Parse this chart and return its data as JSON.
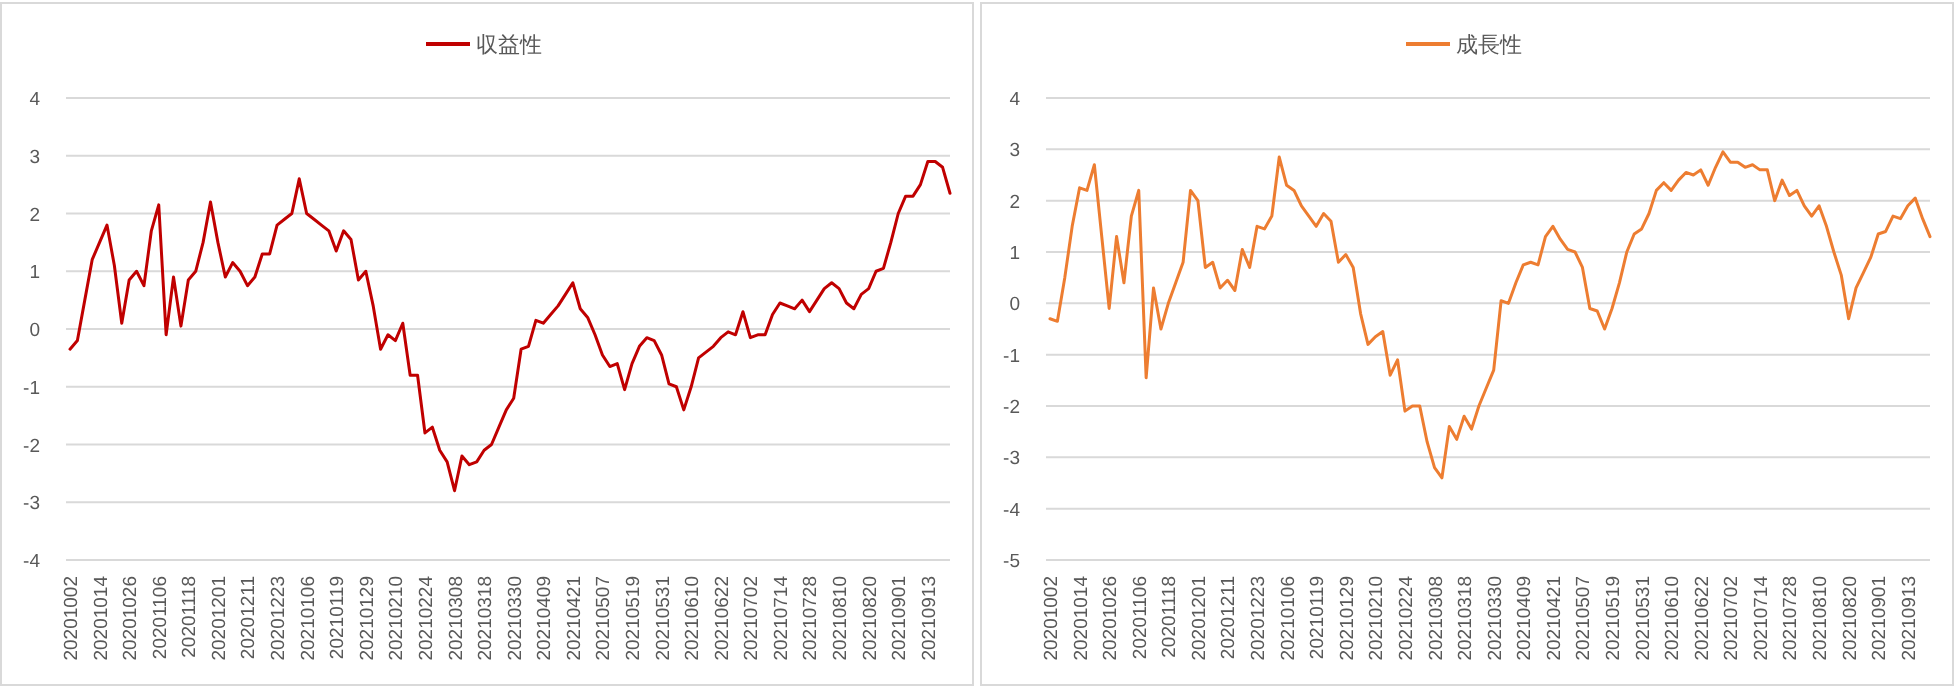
{
  "chart_data": [
    {
      "type": "line",
      "legend": "top",
      "grid": "y",
      "ylim": [
        -4,
        4
      ],
      "yticks": [
        -4,
        -3,
        -2,
        -1,
        0,
        1,
        2,
        3,
        4
      ],
      "categories": [
        "20201002",
        null,
        null,
        null,
        "20201014",
        null,
        null,
        null,
        "20201026",
        null,
        null,
        null,
        "20201106",
        null,
        null,
        null,
        "20201118",
        null,
        null,
        null,
        "20201201",
        null,
        null,
        null,
        "20201211",
        null,
        null,
        null,
        "20201223",
        null,
        null,
        null,
        "20210106",
        null,
        null,
        null,
        "20210119",
        null,
        null,
        null,
        "20210129",
        null,
        null,
        null,
        "20210210",
        null,
        null,
        null,
        "20210224",
        null,
        null,
        null,
        "20210308",
        null,
        null,
        null,
        "20210318",
        null,
        null,
        null,
        "20210330",
        null,
        null,
        null,
        "20210409",
        null,
        null,
        null,
        "20210421",
        null,
        null,
        null,
        "20210507",
        null,
        null,
        null,
        "20210519",
        null,
        null,
        null,
        "20210531",
        null,
        null,
        null,
        "20210610",
        null,
        null,
        null,
        "20210622",
        null,
        null,
        null,
        "20210702",
        null,
        null,
        null,
        "20210714",
        null,
        null,
        null,
        "20210728",
        null,
        null,
        null,
        "20210810",
        null,
        null,
        null,
        "20210820",
        null,
        null,
        null,
        "20210901",
        null,
        null,
        null,
        "20210913",
        null,
        null,
        null
      ],
      "series": [
        {
          "name": "収益性",
          "color": "#c00000",
          "values": [
            -0.35,
            -0.2,
            0.5,
            1.2,
            1.5,
            1.8,
            1.1,
            0.1,
            0.85,
            1.0,
            0.75,
            1.7,
            2.15,
            -0.1,
            0.9,
            0.05,
            0.85,
            1.0,
            1.5,
            2.2,
            1.5,
            0.9,
            1.15,
            1.0,
            0.75,
            0.9,
            1.3,
            1.3,
            1.8,
            1.9,
            2.0,
            2.6,
            2.0,
            1.9,
            1.8,
            1.7,
            1.35,
            1.7,
            1.55,
            0.85,
            1.0,
            0.4,
            -0.35,
            -0.1,
            -0.2,
            0.1,
            -0.8,
            -0.8,
            -1.8,
            -1.7,
            -2.1,
            -2.3,
            -2.8,
            -2.2,
            -2.35,
            -2.3,
            -2.1,
            -2.0,
            -1.7,
            -1.4,
            -1.2,
            -0.35,
            -0.3,
            0.15,
            0.1,
            0.25,
            0.4,
            0.6,
            0.8,
            0.35,
            0.2,
            -0.1,
            -0.45,
            -0.65,
            -0.6,
            -1.05,
            -0.6,
            -0.3,
            -0.15,
            -0.2,
            -0.45,
            -0.95,
            -1.0,
            -1.4,
            -1.0,
            -0.5,
            -0.4,
            -0.3,
            -0.15,
            -0.05,
            -0.1,
            0.3,
            -0.15,
            -0.1,
            -0.1,
            0.25,
            0.45,
            0.4,
            0.35,
            0.5,
            0.3,
            0.5,
            0.7,
            0.8,
            0.7,
            0.45,
            0.35,
            0.6,
            0.7,
            1.0,
            1.05,
            1.5,
            2.0,
            2.3,
            2.3,
            2.5,
            2.9,
            2.9,
            2.8,
            2.35
          ]
        }
      ]
    },
    {
      "type": "line",
      "legend": "top",
      "grid": "y",
      "ylim": [
        -5,
        4
      ],
      "yticks": [
        -5,
        -4,
        -3,
        -2,
        -1,
        0,
        1,
        2,
        3,
        4
      ],
      "categories": [
        "20201002",
        null,
        null,
        null,
        "20201014",
        null,
        null,
        null,
        "20201026",
        null,
        null,
        null,
        "20201106",
        null,
        null,
        null,
        "20201118",
        null,
        null,
        null,
        "20201201",
        null,
        null,
        null,
        "20201211",
        null,
        null,
        null,
        "20201223",
        null,
        null,
        null,
        "20210106",
        null,
        null,
        null,
        "20210119",
        null,
        null,
        null,
        "20210129",
        null,
        null,
        null,
        "20210210",
        null,
        null,
        null,
        "20210224",
        null,
        null,
        null,
        "20210308",
        null,
        null,
        null,
        "20210318",
        null,
        null,
        null,
        "20210330",
        null,
        null,
        null,
        "20210409",
        null,
        null,
        null,
        "20210421",
        null,
        null,
        null,
        "20210507",
        null,
        null,
        null,
        "20210519",
        null,
        null,
        null,
        "20210531",
        null,
        null,
        null,
        "20210610",
        null,
        null,
        null,
        "20210622",
        null,
        null,
        null,
        "20210702",
        null,
        null,
        null,
        "20210714",
        null,
        null,
        null,
        "20210728",
        null,
        null,
        null,
        "20210810",
        null,
        null,
        null,
        "20210820",
        null,
        null,
        null,
        "20210901",
        null,
        null,
        null,
        "20210913",
        null,
        null,
        null
      ],
      "series": [
        {
          "name": "成長性",
          "color": "#ed7d31",
          "values": [
            -0.3,
            -0.35,
            0.5,
            1.5,
            2.25,
            2.2,
            2.7,
            1.3,
            -0.1,
            1.3,
            0.4,
            1.7,
            2.2,
            -1.45,
            0.3,
            -0.5,
            0.0,
            0.4,
            0.8,
            2.2,
            2.0,
            0.7,
            0.8,
            0.3,
            0.45,
            0.25,
            1.05,
            0.7,
            1.5,
            1.45,
            1.7,
            2.85,
            2.3,
            2.2,
            1.9,
            1.7,
            1.5,
            1.75,
            1.6,
            0.8,
            0.95,
            0.7,
            -0.2,
            -0.8,
            -0.65,
            -0.55,
            -1.4,
            -1.1,
            -2.1,
            -2.0,
            -2.0,
            -2.7,
            -3.2,
            -3.4,
            -2.4,
            -2.65,
            -2.2,
            -2.45,
            -2.0,
            -1.65,
            -1.3,
            0.05,
            0.0,
            0.4,
            0.75,
            0.8,
            0.75,
            1.3,
            1.5,
            1.25,
            1.05,
            1.0,
            0.7,
            -0.1,
            -0.15,
            -0.5,
            -0.1,
            0.4,
            1.0,
            1.35,
            1.45,
            1.75,
            2.2,
            2.35,
            2.2,
            2.4,
            2.55,
            2.5,
            2.6,
            2.3,
            2.65,
            2.95,
            2.75,
            2.75,
            2.65,
            2.7,
            2.6,
            2.6,
            2.0,
            2.4,
            2.1,
            2.2,
            1.9,
            1.7,
            1.9,
            1.5,
            1.0,
            0.55,
            -0.3,
            0.3,
            0.6,
            0.9,
            1.35,
            1.4,
            1.7,
            1.65,
            1.9,
            2.05,
            1.65,
            1.3
          ]
        }
      ]
    }
  ]
}
